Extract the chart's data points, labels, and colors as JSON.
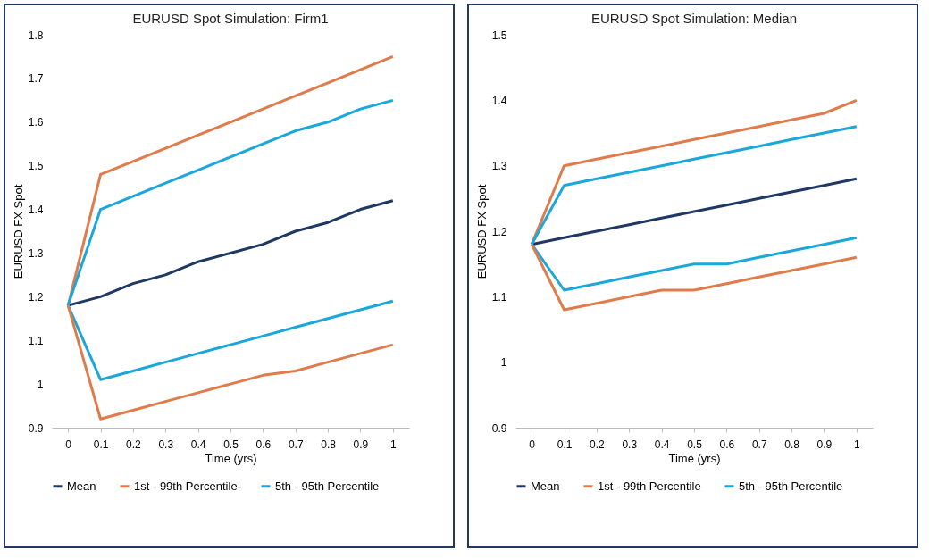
{
  "chart_data": [
    {
      "type": "line",
      "title": "EURUSD Spot Simulation: Firm1",
      "xlabel": "Time (yrs)",
      "ylabel": "EURUSD FX Spot",
      "categories": [
        "0",
        "0.1",
        "0.2",
        "0.3",
        "0.4",
        "0.5",
        "0.6",
        "0.7",
        "0.8",
        "0.9",
        "1"
      ],
      "ylim": [
        0.9,
        1.8
      ],
      "yticks": [
        0.9,
        1,
        1.1,
        1.2,
        1.3,
        1.4,
        1.5,
        1.6,
        1.7,
        1.8
      ],
      "grid": false,
      "legend": "bottom",
      "series": [
        {
          "name": "Mean",
          "color": "#1f3864",
          "values": [
            1.18,
            1.2,
            1.23,
            1.25,
            1.28,
            1.3,
            1.32,
            1.35,
            1.37,
            1.4,
            1.42
          ]
        },
        {
          "name": "1st - 99th Percentile",
          "color": "#e07b4b",
          "values": [
            1.18,
            1.48,
            1.51,
            1.54,
            1.57,
            1.6,
            1.63,
            1.66,
            1.69,
            1.72,
            1.75
          ]
        },
        {
          "name": "5th - 95th Percentile",
          "color": "#1aa7dc",
          "values": [
            1.18,
            1.4,
            1.43,
            1.46,
            1.49,
            1.52,
            1.55,
            1.58,
            1.6,
            1.63,
            1.65
          ]
        },
        {
          "color": "#1aa7dc",
          "values": [
            1.18,
            1.01,
            1.03,
            1.05,
            1.07,
            1.09,
            1.11,
            1.13,
            1.15,
            1.17,
            1.19
          ]
        },
        {
          "color": "#e07b4b",
          "values": [
            1.18,
            0.92,
            0.94,
            0.96,
            0.98,
            1.0,
            1.02,
            1.03,
            1.05,
            1.07,
            1.09
          ]
        }
      ]
    },
    {
      "type": "line",
      "title": "EURUSD Spot Simulation: Median",
      "xlabel": "Time (yrs)",
      "ylabel": "EURUSD FX Spot",
      "categories": [
        "0",
        "0.1",
        "0.2",
        "0.3",
        "0.4",
        "0.5",
        "0.6",
        "0.7",
        "0.8",
        "0.9",
        "1"
      ],
      "ylim": [
        0.9,
        1.5
      ],
      "yticks": [
        0.9,
        1,
        1.1,
        1.2,
        1.3,
        1.4,
        1.5
      ],
      "grid": false,
      "legend": "bottom",
      "series": [
        {
          "name": "Mean",
          "color": "#1f3864",
          "values": [
            1.18,
            1.19,
            1.2,
            1.21,
            1.22,
            1.23,
            1.24,
            1.25,
            1.26,
            1.27,
            1.28
          ]
        },
        {
          "name": "1st - 99th Percentile",
          "color": "#e07b4b",
          "values": [
            1.18,
            1.3,
            1.31,
            1.32,
            1.33,
            1.34,
            1.35,
            1.36,
            1.37,
            1.38,
            1.4
          ]
        },
        {
          "name": "5th - 95th Percentile",
          "color": "#1aa7dc",
          "values": [
            1.18,
            1.27,
            1.28,
            1.29,
            1.3,
            1.31,
            1.32,
            1.33,
            1.34,
            1.35,
            1.36
          ]
        },
        {
          "color": "#1aa7dc",
          "values": [
            1.18,
            1.11,
            1.12,
            1.13,
            1.14,
            1.15,
            1.15,
            1.16,
            1.17,
            1.18,
            1.19
          ]
        },
        {
          "color": "#e07b4b",
          "values": [
            1.18,
            1.08,
            1.09,
            1.1,
            1.11,
            1.11,
            1.12,
            1.13,
            1.14,
            1.15,
            1.16
          ]
        }
      ]
    }
  ]
}
